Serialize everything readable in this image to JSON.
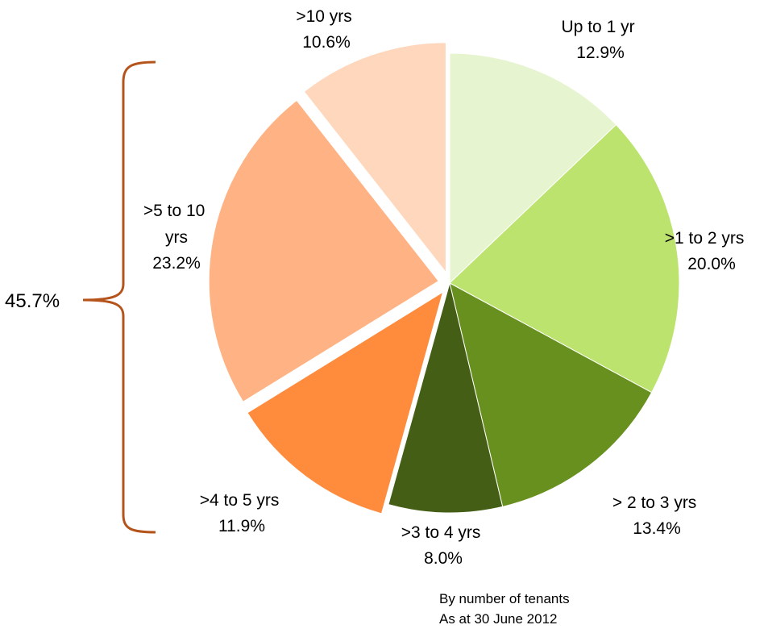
{
  "chart_data": {
    "type": "pie",
    "categories": [
      "Up to 1 yr",
      ">1 to 2 yrs",
      "> 2 to 3 yrs",
      ">3 to 4 yrs",
      ">4 to 5 yrs",
      ">5 to 10 yrs",
      ">10 yrs"
    ],
    "values": [
      12.9,
      20.0,
      13.4,
      8.0,
      11.9,
      23.2,
      10.6
    ],
    "value_labels": [
      "12.9%",
      "20.0%",
      "13.4%",
      "8.0%",
      "11.9%",
      "23.2%",
      "10.6%"
    ],
    "colors": [
      "#E6F4D0",
      "#BCE36E",
      "#67901E",
      "#455E15",
      "#FF8B3D",
      "#FFB283",
      "#FED7BC"
    ],
    "exploded": [
      false,
      false,
      false,
      false,
      true,
      true,
      true
    ],
    "start_angle_deg": 0,
    "direction": "clockwise",
    "bracket": {
      "label": "45.7%",
      "covers": [
        ">4 to 5 yrs",
        ">5 to 10 yrs",
        ">10 yrs"
      ],
      "color": "#B5541A"
    },
    "notes": [
      "By number of tenants",
      "As at 30 June 2012"
    ]
  }
}
